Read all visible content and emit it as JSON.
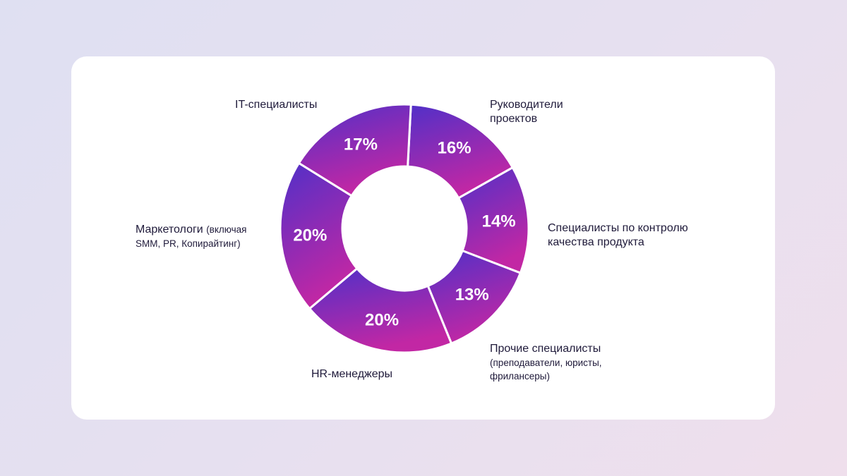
{
  "chart_data": {
    "type": "pie",
    "variant": "donut",
    "categories": [
      "Руководители проектов",
      "Специалисты по контролю качества продукта",
      "Прочие специалисты (преподаватели, юристы, фрилансеры)",
      "HR-менеджеры",
      "Маркетологи (включая SMM, PR, Копирайтинг)",
      "IT-специалисты"
    ],
    "values": [
      16,
      14,
      13,
      20,
      20,
      17
    ],
    "value_labels": [
      "16%",
      "14%",
      "13%",
      "20%",
      "20%",
      "17%"
    ],
    "unit": "%",
    "title": "",
    "legend": "labels placed next to slices",
    "gradient": [
      "#5030c8",
      "#c227a4"
    ]
  },
  "labels": {
    "pm": {
      "main": [
        "Руководители",
        "проектов"
      ]
    },
    "qa": {
      "main": [
        "Специалисты по контролю",
        "качества продукта"
      ]
    },
    "other": {
      "main": "Прочие специалисты",
      "sub": [
        "(преподаватели, юристы,",
        "фрилансеры)"
      ]
    },
    "hr": {
      "main": "HR-менеджеры"
    },
    "marketing": {
      "main": "Маркетологи",
      "sub_inline": "(включая",
      "sub": "SMM, PR, Копирайтинг)"
    },
    "it": {
      "main": "IT-специалисты"
    }
  }
}
